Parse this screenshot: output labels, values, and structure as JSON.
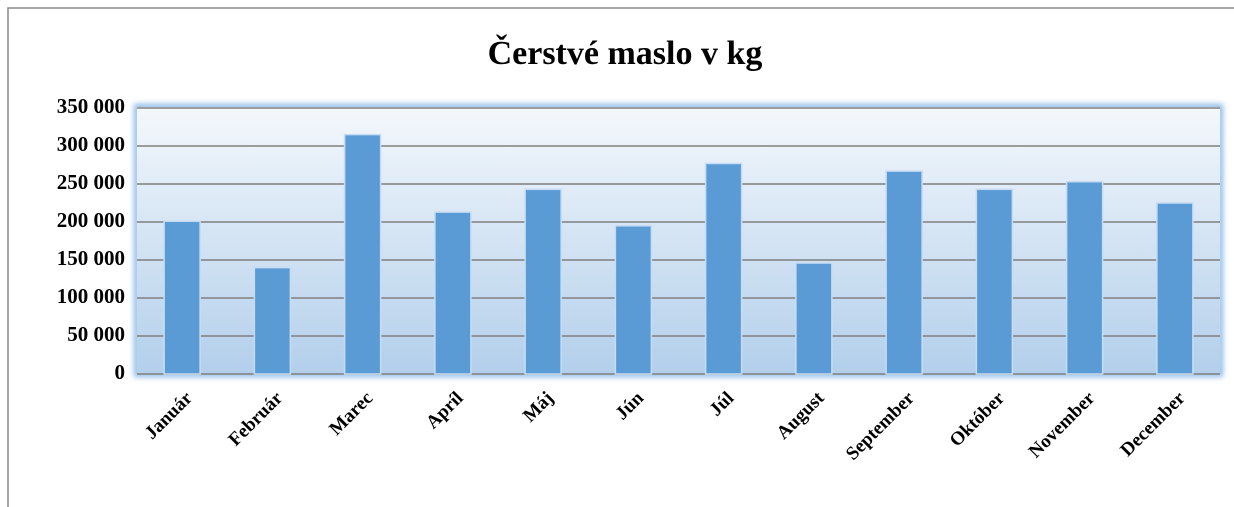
{
  "chart_data": {
    "type": "bar",
    "title": "Čerstvé maslo v kg",
    "categories": [
      "Január",
      "Február",
      "Marec",
      "Apríl",
      "Máj",
      "Jún",
      "Júl",
      "August",
      "September",
      "Október",
      "November",
      "December"
    ],
    "values": [
      201000,
      140000,
      315000,
      213000,
      243000,
      195000,
      277000,
      146000,
      267000,
      243000,
      253000,
      225000
    ],
    "color": "#5b9bd5",
    "ylim": [
      0,
      350000
    ],
    "yticks": [
      0,
      {
        "value": 50000,
        "label": "50 000"
      },
      {
        "value": 100000,
        "label": "100 000"
      },
      {
        "value": 150000,
        "label": "150 000"
      },
      {
        "value": 200000,
        "label": "200 000"
      },
      {
        "value": 250000,
        "label": "250 000"
      },
      {
        "value": 300000,
        "label": "300 000"
      },
      {
        "value": 350000,
        "label": "350 000"
      }
    ],
    "grid": true
  }
}
